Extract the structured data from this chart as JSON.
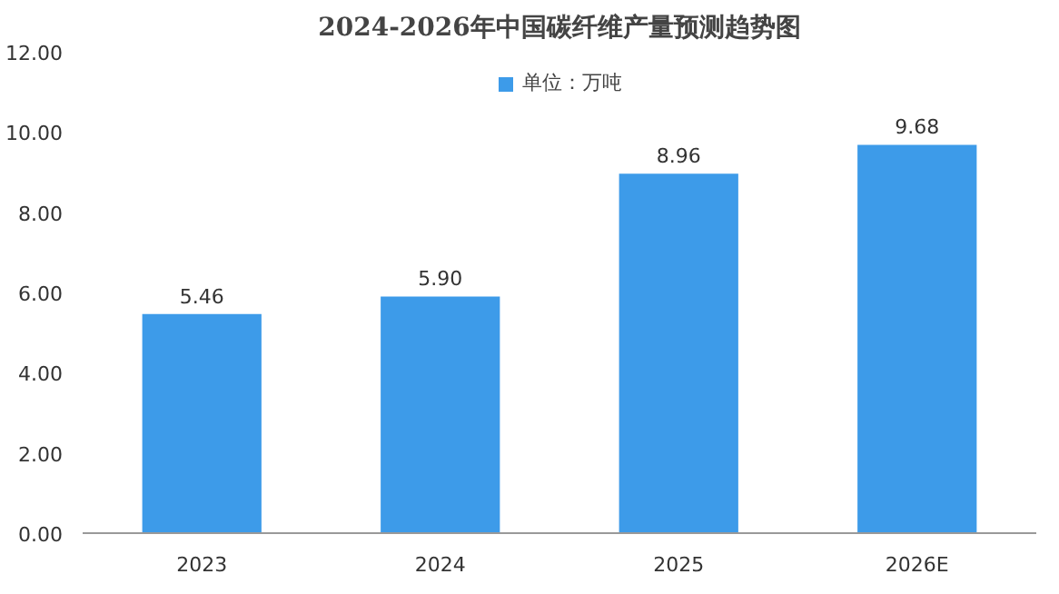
{
  "chart_data": {
    "type": "bar",
    "title": "2024-2026年中国碳纤维产量预测趋势图",
    "categories": [
      "2023",
      "2024",
      "2025",
      "2026E"
    ],
    "series": [
      {
        "name": "单位：万吨",
        "color": "#3d9be9",
        "values": [
          5.46,
          5.9,
          8.96,
          9.68
        ],
        "value_labels": [
          "5.46",
          "5.90",
          "8.96",
          "9.68"
        ]
      }
    ],
    "ylim": [
      0,
      12
    ],
    "yticks": [
      {
        "value": 0,
        "label": "0.00"
      },
      {
        "value": 2,
        "label": "2.00"
      },
      {
        "value": 4,
        "label": "4.00"
      },
      {
        "value": 6,
        "label": "6.00"
      },
      {
        "value": 8,
        "label": "8.00"
      },
      {
        "value": 10,
        "label": "10.00"
      },
      {
        "value": 12,
        "label": "12.00"
      }
    ],
    "legend": "top",
    "grid": false
  }
}
